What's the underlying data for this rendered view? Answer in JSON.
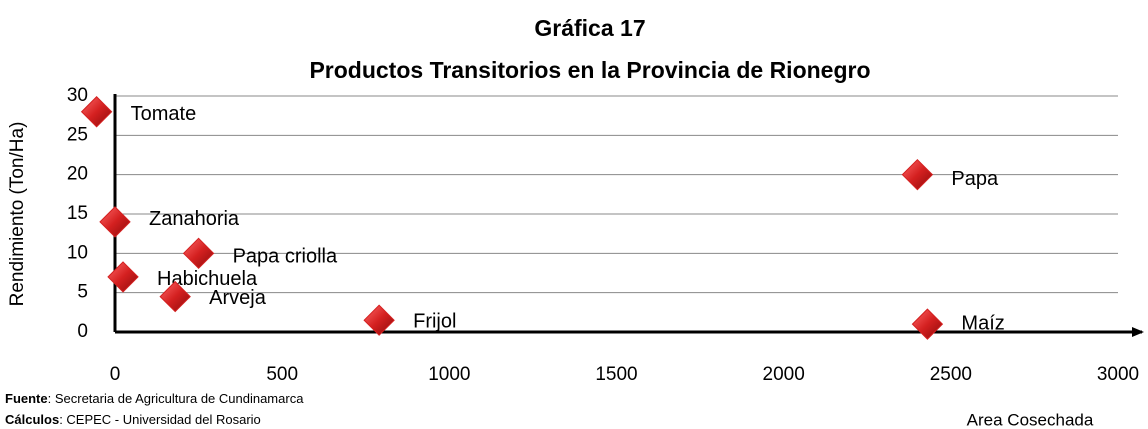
{
  "chart_data": {
    "type": "scatter",
    "title": "Gráfica 17",
    "subtitle": "Productos Transitorios en la Provincia de Rionegro",
    "y_label": "Rendimiento (Ton/Ha)",
    "x_label": "Area Cosechada",
    "labels": [
      "Tomate",
      "Zanahoria",
      "Habichuela",
      "Papa criolla",
      "Arveja",
      "Frijol",
      "Papa",
      "Maíz"
    ],
    "x": [
      -55,
      0,
      24,
      250,
      180,
      790,
      2400,
      2430
    ],
    "values": [
      28,
      14,
      7,
      10,
      4.5,
      1.5,
      20,
      1
    ],
    "color": "#d42020",
    "xlim": [
      0,
      3000
    ],
    "xticks": [
      0,
      500,
      1000,
      1500,
      2000,
      2500,
      3000
    ],
    "ylim": [
      0,
      30
    ],
    "yticks": [
      0,
      5,
      10,
      15,
      20,
      25,
      30
    ],
    "grid": true
  },
  "footer": {
    "source_label": "Fuente",
    "source": ": Secretaria de Agricultura de Cundinamarca",
    "calc_label": "Cálculos",
    "calc": ": CEPEC - Universidad del Rosario"
  }
}
